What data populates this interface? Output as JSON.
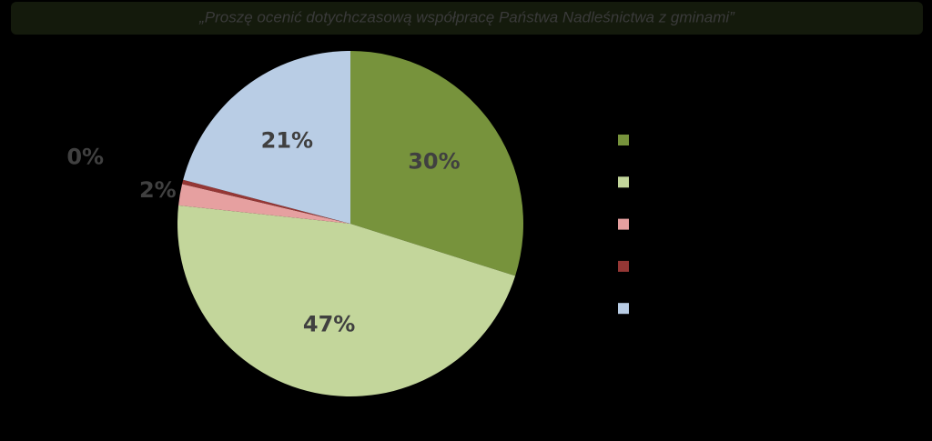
{
  "chart_data": {
    "type": "pie",
    "title": "„Proszę  ocenić dotychczasową współpracę Państwa Nadleśnictwa z gminami”",
    "categories": [
      null,
      null,
      null,
      null,
      null
    ],
    "values": [
      30,
      47,
      2,
      0.4,
      21
    ],
    "value_labels": [
      "30%",
      "47%",
      "2%",
      "0%",
      "21%"
    ],
    "colors": [
      "#77933c",
      "#c3d69b",
      "#e6a0a0",
      "#953735",
      "#b9cde5"
    ],
    "legend": "right"
  }
}
